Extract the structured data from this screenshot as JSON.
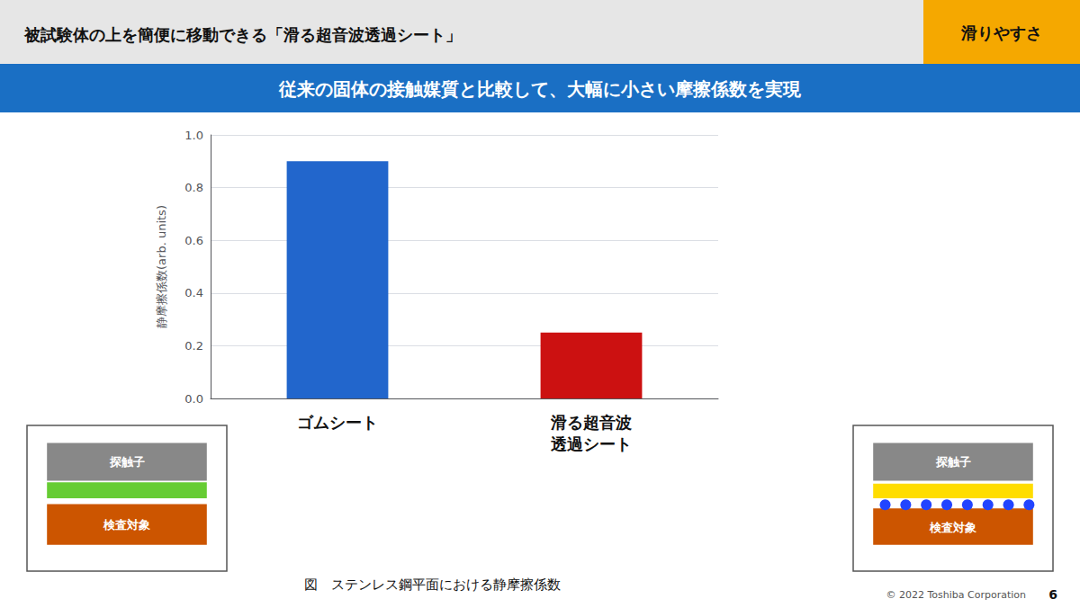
{
  "chart_data": {
    "type": "bar",
    "title": "被試験体の上を簡便に移動できる「滑る超音波透過シート」",
    "subtitle": "従来の固体の接触媒質と比較して、大幅に小さい摩擦係数を実現",
    "ylabel": "静摩擦係数(arb. units)",
    "categories": [
      "ゴムシート",
      "滑る超音波\n透過シート"
    ],
    "values": [
      0.9,
      0.25
    ],
    "colors": [
      "#2266cc",
      "#cc1111"
    ],
    "ylim": [
      0,
      1
    ],
    "yticks": [
      {
        "value": 0,
        "label": "0.0"
      },
      0.2,
      0.4,
      0.6,
      0.8,
      {
        "value": 1.0,
        "label": "1.0"
      }
    ],
    "grid": true,
    "annotations": [
      "滑りやすさ",
      "図　ステンレス鋼平面における静摩擦係数",
      "© 2022 Toshiba Corporation",
      "6",
      "探触子",
      "検査対象",
      "探触子",
      "検査対象"
    ]
  }
}
